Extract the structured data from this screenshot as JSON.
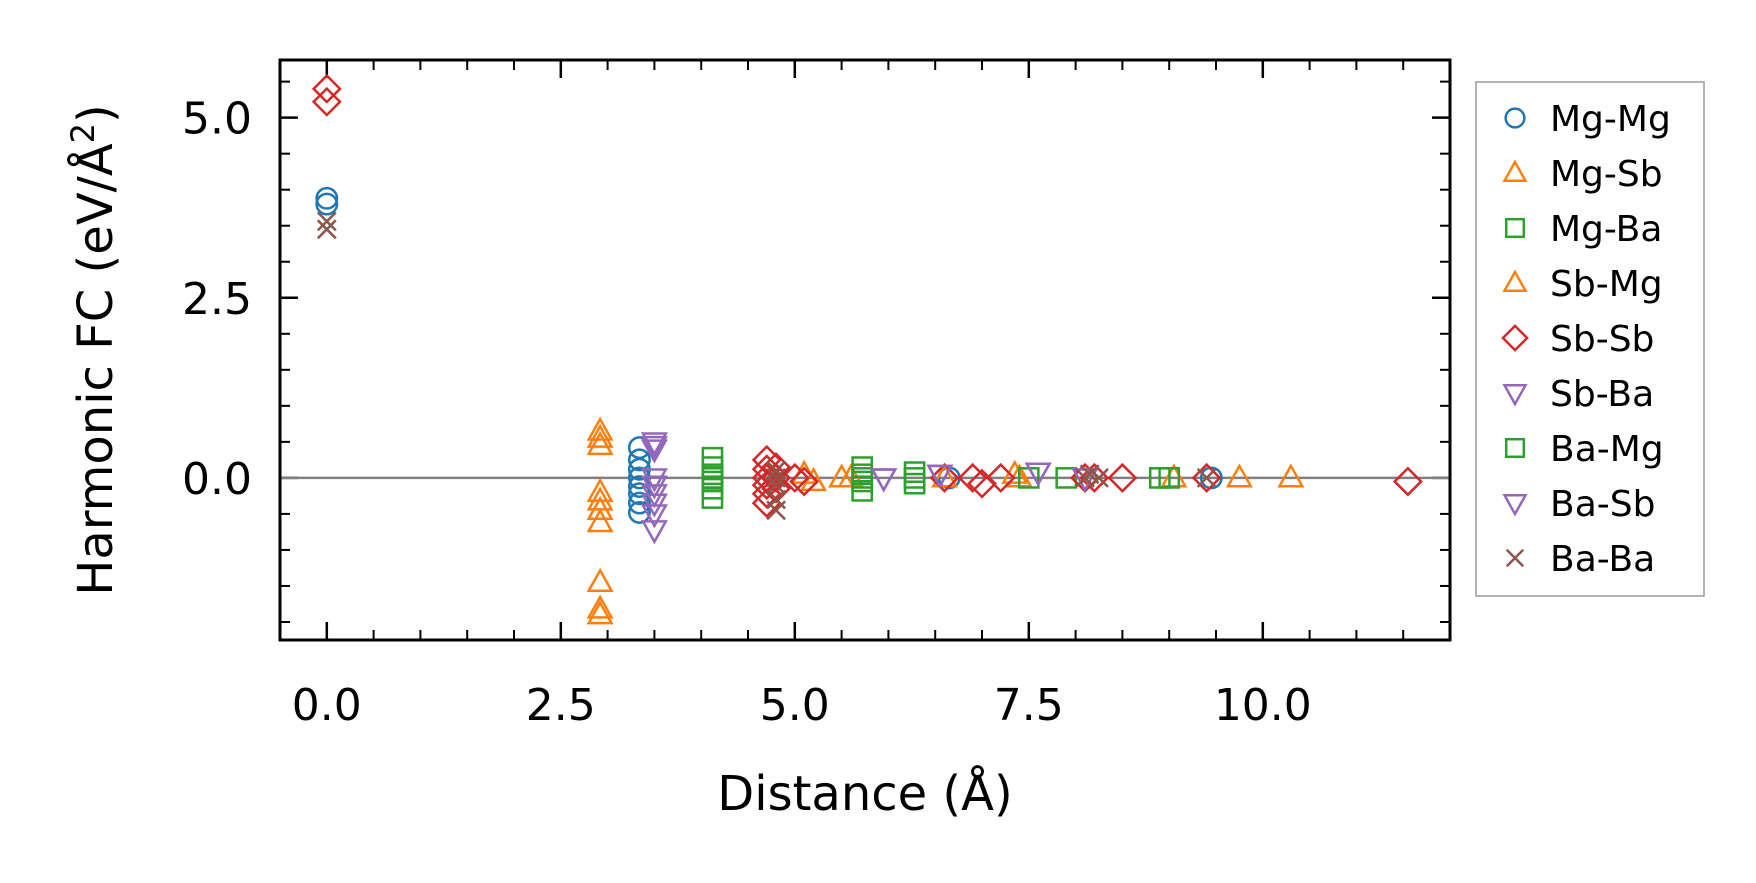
{
  "chart_data": {
    "type": "scatter",
    "title": "",
    "xlabel": "Distance (Å)",
    "ylabel": "Harmonic FC (eV/Å",
    "ylabel_superscript": "2",
    "ylabel_close": ")",
    "xlim": [
      -0.5,
      12.0
    ],
    "ylim": [
      -2.25,
      5.8
    ],
    "x_ticks": [
      0.0,
      2.5,
      5.0,
      7.5,
      10.0
    ],
    "x_tick_labels": [
      "0.0",
      "2.5",
      "5.0",
      "7.5",
      "10.0"
    ],
    "y_ticks": [
      0.0,
      2.5,
      5.0
    ],
    "y_tick_labels": [
      "0.0",
      "2.5",
      "5.0"
    ],
    "zero_line": true,
    "legend_position": "right",
    "series": [
      {
        "name": "Mg-Mg",
        "marker": "circle",
        "color": "#1f77b4",
        "x": [
          0,
          0,
          3.34,
          3.34,
          3.34,
          3.34,
          3.34,
          3.34,
          3.34,
          3.34,
          6.65,
          9.45
        ],
        "y": [
          3.88,
          3.8,
          0.42,
          0.25,
          0.12,
          0.0,
          -0.12,
          -0.22,
          -0.35,
          -0.48,
          0.0,
          0.0
        ]
      },
      {
        "name": "Mg-Sb",
        "marker": "triangle-up",
        "color": "#ff7f0e",
        "x": [
          2.92,
          2.92,
          2.92,
          2.92,
          2.92,
          2.92,
          2.92,
          2.92,
          2.92,
          2.92,
          5.6,
          6.6,
          7.35,
          9.05,
          10.3
        ],
        "y": [
          0.65,
          0.55,
          0.45,
          -0.2,
          -0.32,
          -0.45,
          -0.62,
          -1.45,
          -1.82,
          -1.9,
          0.0,
          0.0,
          0.05,
          0.0,
          0.0
        ]
      },
      {
        "name": "Mg-Ba",
        "marker": "square",
        "color": "#2ca02c",
        "x": [
          4.12,
          4.12,
          4.12,
          4.12,
          4.12,
          4.12,
          5.72,
          5.72,
          5.72,
          5.72,
          6.28,
          6.28,
          7.9,
          8.9
        ],
        "y": [
          0.28,
          0.15,
          0.05,
          -0.05,
          -0.15,
          -0.28,
          0.15,
          0.05,
          -0.05,
          -0.18,
          0.08,
          -0.08,
          0.0,
          0.0
        ]
      },
      {
        "name": "Sb-Mg",
        "marker": "triangle-up",
        "color": "#ff7f0e",
        "x": [
          5.1,
          5.2,
          5.5,
          7.4,
          9.75
        ],
        "y": [
          0.05,
          -0.05,
          0.0,
          0.0,
          0.0
        ]
      },
      {
        "name": "Sb-Sb",
        "marker": "diamond",
        "color": "#d62728",
        "x": [
          0,
          0,
          4.7,
          4.7,
          4.7,
          4.7,
          4.7,
          4.7,
          4.8,
          4.8,
          4.8,
          5.0,
          5.1,
          6.6,
          6.9,
          7.0,
          7.2,
          8.1,
          8.2,
          8.5,
          9.4,
          11.55
        ],
        "y": [
          5.4,
          5.22,
          0.25,
          0.12,
          0.0,
          -0.1,
          -0.22,
          -0.35,
          0.15,
          0.0,
          -0.15,
          0.0,
          -0.05,
          0.0,
          0.0,
          -0.08,
          0.0,
          0.0,
          0.0,
          0.0,
          0.0,
          -0.05
        ]
      },
      {
        "name": "Sb-Ba",
        "marker": "triangle-down",
        "color": "#9467bd",
        "x": [
          3.5,
          3.5,
          3.5,
          3.5,
          3.5,
          3.5,
          3.5,
          3.5,
          5.95,
          6.55,
          7.6
        ],
        "y": [
          0.5,
          0.4,
          0.0,
          -0.1,
          -0.22,
          -0.35,
          -0.5,
          -0.72,
          0.0,
          0.05,
          0.08
        ]
      },
      {
        "name": "Ba-Mg",
        "marker": "square",
        "color": "#2ca02c",
        "x": [
          4.12,
          5.72,
          6.28,
          7.5,
          9.0
        ],
        "y": [
          0.0,
          0.0,
          0.0,
          0.0,
          0.0
        ]
      },
      {
        "name": "Ba-Sb",
        "marker": "triangle-down",
        "color": "#9467bd",
        "x": [
          3.5,
          5.95,
          6.55,
          7.6,
          8.1
        ],
        "y": [
          0.45,
          0.0,
          0.05,
          0.08,
          0.0
        ]
      },
      {
        "name": "Ba-Ba",
        "marker": "x",
        "color": "#8c564b",
        "x": [
          0,
          0,
          4.8,
          4.8,
          4.8,
          4.8,
          4.8,
          8.1,
          8.15,
          8.25,
          9.4
        ],
        "y": [
          3.56,
          3.45,
          0.1,
          0.0,
          -0.1,
          -0.3,
          -0.45,
          0.0,
          0.05,
          0.0,
          0.0
        ]
      }
    ]
  }
}
